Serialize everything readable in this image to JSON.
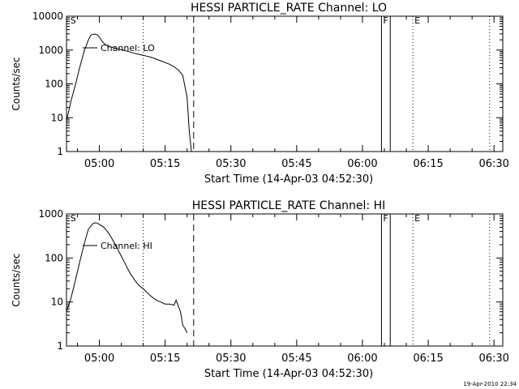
{
  "colors": {
    "background": "#ffffff",
    "ink": "#000000"
  },
  "footer": {
    "timestamp": "19-Apr-2010 22:34"
  },
  "chart_data": [
    {
      "type": "line",
      "title": "HESSI PARTICLE_RATE Channel: LO",
      "ylabel": "Counts/sec",
      "xlabel": "Start Time (14-Apr-03 04:52:30)",
      "yscale": "log",
      "ylim": [
        1,
        10000
      ],
      "y_ticks": [
        "1",
        "10",
        "100",
        "1000",
        "10000"
      ],
      "xlim": [
        "04:52:30",
        "06:32:00"
      ],
      "x_ticks": [
        "05:00",
        "05:15",
        "05:30",
        "05:45",
        "06:00",
        "06:15",
        "06:30"
      ],
      "legend": {
        "label": "Channel: LO",
        "position": "top-left"
      },
      "markers": [
        {
          "label": "S",
          "time": "04:53:00",
          "style": "none"
        },
        {
          "label": "",
          "time": "05:10:00",
          "style": "dotted"
        },
        {
          "label": "",
          "time": "05:21:30",
          "style": "dashed"
        },
        {
          "label": "F",
          "time": "06:04:20",
          "style": "solid"
        },
        {
          "label": "",
          "time": "06:06:20",
          "style": "solid"
        },
        {
          "label": "E",
          "time": "06:11:30",
          "style": "dotted"
        },
        {
          "label": "",
          "time": "06:29:00",
          "style": "dotted"
        }
      ],
      "series": [
        {
          "x": [
            "04:52:30",
            "04:53:30",
            "04:54:30",
            "04:55:30",
            "04:56:30",
            "04:57:30",
            "04:58:00",
            "04:58:30",
            "04:59:00",
            "04:59:30",
            "05:00:00",
            "05:00:30",
            "05:01:00",
            "05:01:30",
            "05:02:30",
            "05:04:00",
            "05:06:00",
            "05:08:00",
            "05:10:00",
            "05:12:00",
            "05:14:00",
            "05:16:00",
            "05:17:00",
            "05:18:00",
            "05:19:00",
            "05:20:00",
            "05:20:30",
            "05:21:00"
          ],
          "y": [
            8,
            30,
            90,
            300,
            900,
            2000,
            2700,
            2900,
            2950,
            2850,
            2400,
            1900,
            1600,
            1400,
            1250,
            1100,
            950,
            800,
            700,
            600,
            480,
            380,
            320,
            260,
            180,
            40,
            4,
            1
          ]
        }
      ]
    },
    {
      "type": "line",
      "title": "HESSI PARTICLE_RATE Channel: HI",
      "ylabel": "Counts/sec",
      "xlabel": "Start Time (14-Apr-03 04:52:30)",
      "yscale": "log",
      "ylim": [
        1,
        1000
      ],
      "y_ticks": [
        "1",
        "10",
        "100",
        "1000"
      ],
      "xlim": [
        "04:52:30",
        "06:32:00"
      ],
      "x_ticks": [
        "05:00",
        "05:15",
        "05:30",
        "05:45",
        "06:00",
        "06:15",
        "06:30"
      ],
      "legend": {
        "label": "Channel: HI",
        "position": "top-left"
      },
      "markers": [
        {
          "label": "S",
          "time": "04:53:00",
          "style": "none"
        },
        {
          "label": "",
          "time": "05:10:00",
          "style": "dotted"
        },
        {
          "label": "",
          "time": "05:21:30",
          "style": "dashed"
        },
        {
          "label": "F",
          "time": "06:04:20",
          "style": "solid"
        },
        {
          "label": "",
          "time": "06:06:20",
          "style": "solid"
        },
        {
          "label": "E",
          "time": "06:11:30",
          "style": "dotted"
        },
        {
          "label": "",
          "time": "06:29:00",
          "style": "dotted"
        }
      ],
      "series": [
        {
          "x": [
            "04:52:30",
            "04:53:30",
            "04:54:30",
            "04:55:30",
            "04:56:30",
            "04:57:30",
            "04:58:30",
            "04:59:00",
            "04:59:30",
            "05:00:00",
            "05:01:00",
            "05:02:00",
            "05:03:00",
            "05:04:00",
            "05:05:00",
            "05:06:00",
            "05:07:00",
            "05:08:00",
            "05:09:00",
            "05:10:00",
            "05:11:00",
            "05:12:00",
            "05:13:00",
            "05:14:00",
            "05:15:00",
            "05:16:00",
            "05:17:00",
            "05:17:30",
            "05:18:00",
            "05:18:30",
            "05:19:00",
            "05:19:30",
            "05:20:00"
          ],
          "y": [
            6,
            12,
            30,
            80,
            200,
            450,
            600,
            630,
            620,
            580,
            500,
            380,
            260,
            170,
            110,
            70,
            45,
            32,
            24,
            20,
            16,
            13,
            11,
            10,
            9,
            9,
            8.5,
            11,
            8,
            6,
            3,
            2.5,
            2
          ]
        }
      ]
    }
  ]
}
